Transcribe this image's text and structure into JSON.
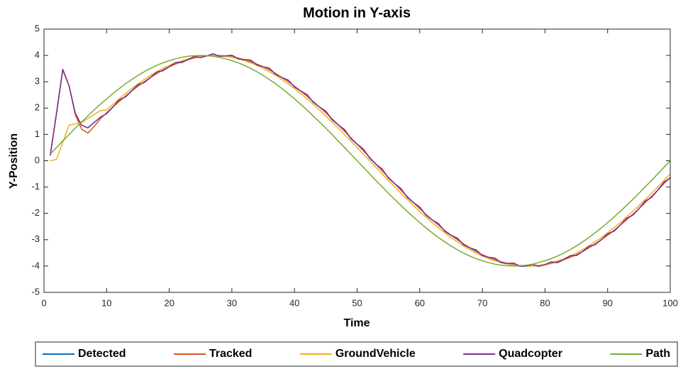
{
  "chart_data": {
    "type": "line",
    "title": "Motion in Y-axis",
    "xlabel": "Time",
    "ylabel": "Y-Position",
    "x": [
      1,
      2,
      3,
      4,
      5,
      6,
      7,
      8,
      9,
      10,
      11,
      12,
      13,
      14,
      15,
      16,
      17,
      18,
      19,
      20,
      21,
      22,
      23,
      24,
      25,
      26,
      27,
      28,
      29,
      30,
      31,
      32,
      33,
      34,
      35,
      36,
      37,
      38,
      39,
      40,
      41,
      42,
      43,
      44,
      45,
      46,
      47,
      48,
      49,
      50,
      51,
      52,
      53,
      54,
      55,
      56,
      57,
      58,
      59,
      60,
      61,
      62,
      63,
      64,
      65,
      66,
      67,
      68,
      69,
      70,
      71,
      72,
      73,
      74,
      75,
      76,
      77,
      78,
      79,
      80,
      81,
      82,
      83,
      84,
      85,
      86,
      87,
      88,
      89,
      90,
      91,
      92,
      93,
      94,
      95,
      96,
      97,
      98,
      99,
      100
    ],
    "series": [
      {
        "name": "Detected",
        "color": "#0072BD",
        "values": [
          0.2,
          1.8,
          3.47,
          2.85,
          1.8,
          1.35,
          1.25,
          1.45,
          1.65,
          1.79,
          2.04,
          2.31,
          2.42,
          2.65,
          2.89,
          2.97,
          3.16,
          3.37,
          3.42,
          3.57,
          3.73,
          3.73,
          3.84,
          3.96,
          3.92,
          3.98,
          4.06,
          3.97,
          3.98,
          4.01,
          3.87,
          3.84,
          3.82,
          3.64,
          3.57,
          3.51,
          3.28,
          3.16,
          3.06,
          2.8,
          2.65,
          2.51,
          2.22,
          2.04,
          1.88,
          1.56,
          1.36,
          1.18,
          0.84,
          0.63,
          0.44,
          0.1,
          -0.13,
          -0.32,
          -0.66,
          -0.87,
          -1.06,
          -1.39,
          -1.59,
          -1.76,
          -2.07,
          -2.25,
          -2.39,
          -2.68,
          -2.83,
          -2.94,
          -3.19,
          -3.31,
          -3.39,
          -3.6,
          -3.67,
          -3.7,
          -3.87,
          -3.9,
          -3.89,
          -4.01,
          -4.0,
          -3.94,
          -4.01,
          -3.95,
          -3.84,
          -3.87,
          -3.76,
          -3.61,
          -3.6,
          -3.45,
          -3.25,
          -3.19,
          -3.0,
          -2.77,
          -2.68,
          -2.45,
          -2.19,
          -2.07,
          -1.82,
          -1.53,
          -1.39,
          -1.12,
          -0.81,
          -0.66
        ]
      },
      {
        "name": "Tracked",
        "color": "#D95319",
        "values": [
          0.2,
          1.8,
          3.45,
          2.85,
          1.75,
          1.2,
          1.05,
          1.3,
          1.59,
          1.82,
          2.04,
          2.25,
          2.45,
          2.65,
          2.83,
          3.0,
          3.16,
          3.31,
          3.45,
          3.57,
          3.67,
          3.76,
          3.84,
          3.9,
          3.95,
          3.98,
          4.0,
          4.0,
          3.98,
          3.95,
          3.9,
          3.84,
          3.76,
          3.67,
          3.57,
          3.45,
          3.31,
          3.16,
          3.0,
          2.83,
          2.65,
          2.45,
          2.25,
          2.04,
          1.82,
          1.59,
          1.36,
          1.12,
          0.87,
          0.63,
          0.38,
          0.13,
          -0.13,
          -0.38,
          -0.63,
          -0.87,
          -1.12,
          -1.36,
          -1.59,
          -1.82,
          -2.04,
          -2.25,
          -2.45,
          -2.65,
          -2.83,
          -3.0,
          -3.16,
          -3.31,
          -3.45,
          -3.57,
          -3.67,
          -3.76,
          -3.84,
          -3.9,
          -3.95,
          -3.98,
          -4.0,
          -4.0,
          -3.98,
          -3.95,
          -3.9,
          -3.84,
          -3.76,
          -3.67,
          -3.57,
          -3.45,
          -3.31,
          -3.16,
          -3.0,
          -2.83,
          -2.65,
          -2.45,
          -2.25,
          -2.04,
          -1.82,
          -1.59,
          -1.36,
          -1.12,
          -0.87,
          -0.63
        ]
      },
      {
        "name": "GroundVehicle",
        "color": "#EDB120",
        "values": [
          0,
          0.05,
          0.7,
          1.35,
          1.4,
          1.45,
          1.6,
          1.75,
          1.9,
          1.93,
          2.14,
          2.35,
          2.55,
          2.74,
          2.92,
          3.08,
          3.24,
          3.38,
          3.51,
          3.62,
          3.72,
          3.8,
          3.87,
          3.93,
          3.97,
          3.99,
          4,
          3.99,
          3.97,
          3.93,
          3.87,
          3.8,
          3.72,
          3.62,
          3.51,
          3.38,
          3.24,
          3.08,
          2.92,
          2.74,
          2.55,
          2.35,
          2.14,
          1.93,
          1.7,
          1.47,
          1.24,
          0.99,
          0.75,
          0.5,
          0.25,
          0,
          -0.25,
          -0.5,
          -0.75,
          -0.99,
          -1.24,
          -1.47,
          -1.7,
          -1.93,
          -2.14,
          -2.35,
          -2.55,
          -2.74,
          -2.92,
          -3.08,
          -3.24,
          -3.38,
          -3.51,
          -3.62,
          -3.72,
          -3.8,
          -3.87,
          -3.93,
          -3.97,
          -3.99,
          -4,
          -3.99,
          -3.97,
          -3.93,
          -3.87,
          -3.8,
          -3.72,
          -3.62,
          -3.51,
          -3.38,
          -3.24,
          -3.08,
          -2.92,
          -2.74,
          -2.55,
          -2.35,
          -2.14,
          -1.93,
          -1.7,
          -1.47,
          -1.24,
          -0.99,
          -0.75,
          -0.5
        ]
      },
      {
        "name": "Quadcopter",
        "color": "#7E2F8E",
        "values": [
          0.2,
          1.8,
          3.47,
          2.85,
          1.8,
          1.35,
          1.25,
          1.45,
          1.65,
          1.79,
          2.04,
          2.31,
          2.42,
          2.65,
          2.89,
          2.97,
          3.16,
          3.37,
          3.42,
          3.57,
          3.73,
          3.73,
          3.84,
          3.96,
          3.92,
          3.98,
          4.06,
          3.97,
          3.98,
          4.01,
          3.87,
          3.84,
          3.82,
          3.64,
          3.57,
          3.51,
          3.28,
          3.16,
          3.06,
          2.8,
          2.65,
          2.51,
          2.22,
          2.04,
          1.88,
          1.56,
          1.36,
          1.18,
          0.84,
          0.63,
          0.44,
          0.1,
          -0.13,
          -0.32,
          -0.66,
          -0.87,
          -1.06,
          -1.39,
          -1.59,
          -1.76,
          -2.07,
          -2.25,
          -2.39,
          -2.68,
          -2.83,
          -2.94,
          -3.19,
          -3.31,
          -3.39,
          -3.6,
          -3.67,
          -3.7,
          -3.87,
          -3.9,
          -3.89,
          -4.01,
          -4.0,
          -3.94,
          -4.01,
          -3.95,
          -3.84,
          -3.87,
          -3.76,
          -3.61,
          -3.6,
          -3.45,
          -3.25,
          -3.19,
          -3.0,
          -2.77,
          -2.68,
          -2.45,
          -2.19,
          -2.07,
          -1.82,
          -1.53,
          -1.39,
          -1.12,
          -0.81,
          -0.66
        ]
      },
      {
        "name": "Path",
        "color": "#77AC30",
        "values": [
          0.25,
          0.5,
          0.75,
          0.99,
          1.24,
          1.47,
          1.7,
          1.93,
          2.14,
          2.35,
          2.55,
          2.74,
          2.92,
          3.08,
          3.24,
          3.38,
          3.51,
          3.62,
          3.72,
          3.8,
          3.87,
          3.93,
          3.97,
          3.99,
          4,
          3.99,
          3.97,
          3.93,
          3.87,
          3.8,
          3.72,
          3.62,
          3.51,
          3.38,
          3.24,
          3.08,
          2.92,
          2.74,
          2.55,
          2.35,
          2.14,
          1.93,
          1.7,
          1.47,
          1.24,
          0.99,
          0.75,
          0.5,
          0.25,
          0,
          -0.25,
          -0.5,
          -0.75,
          -0.99,
          -1.24,
          -1.47,
          -1.7,
          -1.93,
          -2.14,
          -2.35,
          -2.55,
          -2.74,
          -2.92,
          -3.08,
          -3.24,
          -3.38,
          -3.51,
          -3.62,
          -3.72,
          -3.8,
          -3.87,
          -3.93,
          -3.97,
          -3.99,
          -4,
          -3.99,
          -3.97,
          -3.93,
          -3.87,
          -3.8,
          -3.72,
          -3.62,
          -3.51,
          -3.38,
          -3.24,
          -3.08,
          -2.92,
          -2.74,
          -2.55,
          -2.35,
          -2.14,
          -1.93,
          -1.7,
          -1.47,
          -1.24,
          -0.99,
          -0.75,
          -0.5,
          -0.25,
          0
        ]
      }
    ],
    "xlim": [
      0,
      100
    ],
    "xticks": [
      0,
      10,
      20,
      30,
      40,
      50,
      60,
      70,
      80,
      90,
      100
    ],
    "ylim": [
      -5,
      5
    ],
    "yticks": [
      -5,
      -4,
      -3,
      -2,
      -1,
      0,
      1,
      2,
      3,
      4,
      5
    ],
    "grid": false,
    "legend": "bottom"
  }
}
